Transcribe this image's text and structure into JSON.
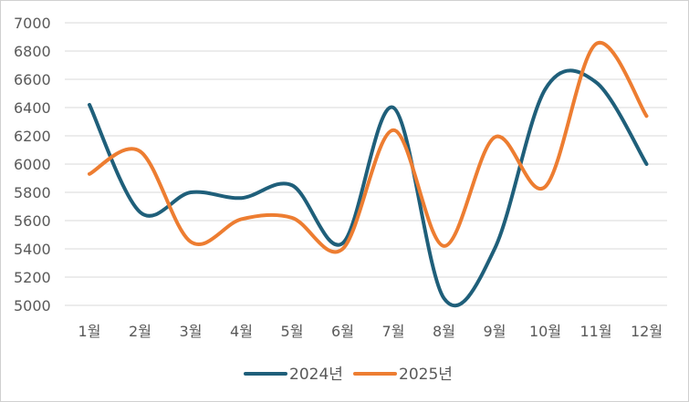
{
  "chart_data": {
    "type": "line",
    "categories": [
      "1월",
      "2월",
      "3월",
      "4월",
      "5월",
      "6월",
      "7월",
      "8월",
      "9월",
      "10월",
      "11월",
      "12월"
    ],
    "series": [
      {
        "name": "2024년",
        "color": "#1f5f7a",
        "values": [
          6420,
          5660,
          5800,
          5760,
          5850,
          5440,
          6400,
          5050,
          5400,
          6530,
          6580,
          6000
        ]
      },
      {
        "name": "2025년",
        "color": "#ed7d31",
        "values": [
          5930,
          6090,
          5450,
          5610,
          5620,
          5400,
          6240,
          5420,
          6190,
          5840,
          6850,
          6340
        ]
      }
    ],
    "ylim": [
      5000,
      7000
    ],
    "yticks": [
      "5000",
      "5200",
      "5400",
      "5600",
      "5800",
      "6000",
      "6200",
      "6400",
      "6600",
      "6800",
      "7000"
    ],
    "grid": true,
    "legend_position": "bottom",
    "smooth": true
  }
}
